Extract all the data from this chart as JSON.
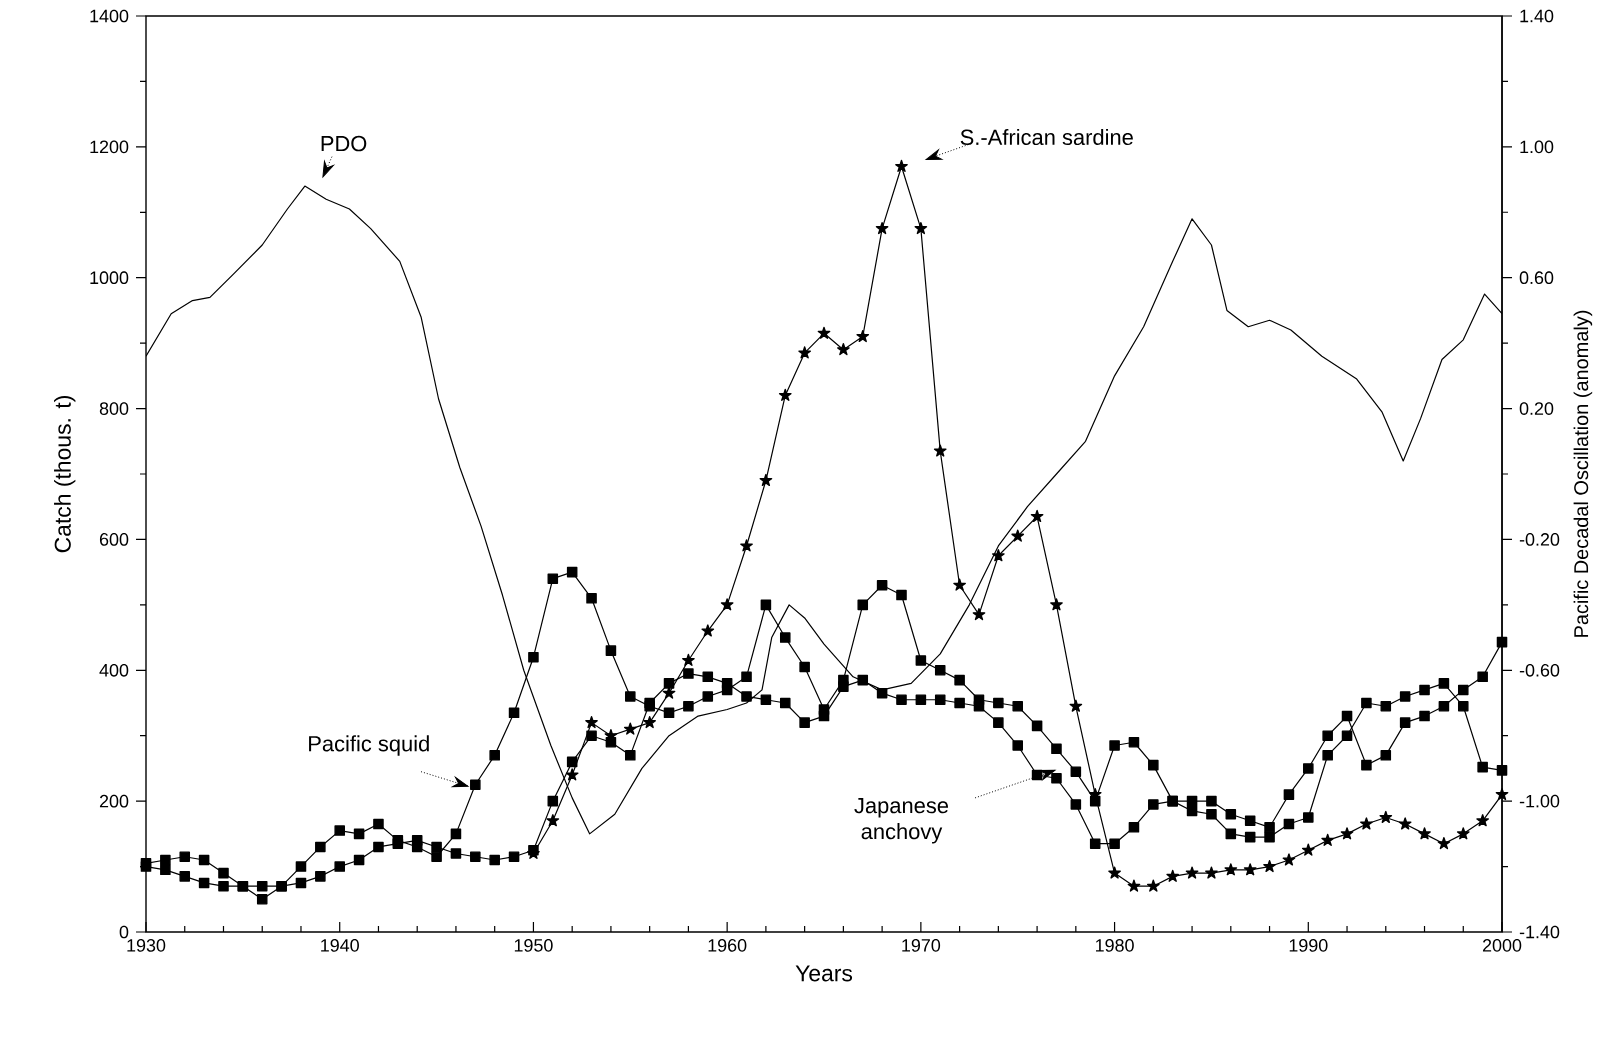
{
  "chart_data": {
    "type": "line",
    "xlabel": "Years",
    "ylabel": "Catch (thous. t)",
    "y2label": "Pacific Decadal Oscillation (anomaly)",
    "xlim": [
      1930,
      2000
    ],
    "ylim": [
      0,
      1400
    ],
    "y2lim": [
      -1.4,
      1.4
    ],
    "xticks": [
      1930,
      {
        "value": 1932,
        "label": null
      },
      {
        "value": 1934,
        "label": null
      },
      {
        "value": 1936,
        "label": null
      },
      {
        "value": 1938,
        "label": null
      },
      1940,
      {
        "value": 1942,
        "label": null
      },
      {
        "value": 1944,
        "label": null
      },
      {
        "value": 1946,
        "label": null
      },
      {
        "value": 1948,
        "label": null
      },
      1950,
      {
        "value": 1952,
        "label": null
      },
      {
        "value": 1954,
        "label": null
      },
      {
        "value": 1956,
        "label": null
      },
      {
        "value": 1958,
        "label": null
      },
      1960,
      {
        "value": 1962,
        "label": null
      },
      {
        "value": 1964,
        "label": null
      },
      {
        "value": 1966,
        "label": null
      },
      {
        "value": 1968,
        "label": null
      },
      1970,
      {
        "value": 1972,
        "label": null
      },
      {
        "value": 1974,
        "label": null
      },
      {
        "value": 1976,
        "label": null
      },
      {
        "value": 1978,
        "label": null
      },
      1980,
      {
        "value": 1982,
        "label": null
      },
      {
        "value": 1984,
        "label": null
      },
      {
        "value": 1986,
        "label": null
      },
      {
        "value": 1988,
        "label": null
      },
      1990,
      {
        "value": 1992,
        "label": null
      },
      {
        "value": 1994,
        "label": null
      },
      {
        "value": 1996,
        "label": null
      },
      {
        "value": 1998,
        "label": null
      },
      2000
    ],
    "yticks": [
      0,
      {
        "value": 100,
        "label": null
      },
      200,
      {
        "value": 300,
        "label": null
      },
      400,
      {
        "value": 500,
        "label": null
      },
      600,
      {
        "value": 700,
        "label": null
      },
      800,
      {
        "value": 900,
        "label": null
      },
      1000,
      {
        "value": 1100,
        "label": null
      },
      1200,
      {
        "value": 1300,
        "label": null
      },
      1400
    ],
    "y2ticks": [
      {
        "value": 1.4,
        "label": "1.40"
      },
      {
        "value": 1.2,
        "label": null
      },
      {
        "value": 1.0,
        "label": "1.00"
      },
      {
        "value": 0.8,
        "label": null
      },
      {
        "value": 0.6,
        "label": "0.60"
      },
      {
        "value": 0.4,
        "label": null
      },
      {
        "value": 0.2,
        "label": "0.20"
      },
      {
        "value": 0.0,
        "label": null
      },
      {
        "value": -0.2,
        "label": "-0.20"
      },
      {
        "value": -0.4,
        "label": null
      },
      {
        "value": -0.6,
        "label": "-0.60"
      },
      {
        "value": -0.8,
        "label": null
      },
      {
        "value": -1.0,
        "label": "-1.00"
      },
      {
        "value": -1.2,
        "label": null
      },
      {
        "value": -1.4,
        "label": "-1.40"
      }
    ],
    "x": [
      1930,
      1931,
      1932,
      1933,
      1934,
      1935,
      1936,
      1937,
      1938,
      1939,
      1940,
      1941,
      1942,
      1943,
      1944,
      1945,
      1946,
      1947,
      1948,
      1949,
      1950,
      1951,
      1952,
      1953,
      1954,
      1955,
      1956,
      1957,
      1958,
      1959,
      1960,
      1961,
      1962,
      1963,
      1964,
      1965,
      1966,
      1967,
      1968,
      1969,
      1970,
      1971,
      1972,
      1973,
      1974,
      1975,
      1976,
      1977,
      1978,
      1979,
      1980,
      1981,
      1982,
      1983,
      1984,
      1985,
      1986,
      1987,
      1988,
      1989,
      1990,
      1991,
      1992,
      1993,
      1994,
      1995,
      1996,
      1997,
      1998,
      1999,
      2000
    ],
    "series": [
      {
        "name": "PDO",
        "color": "#000000",
        "axis": "y2",
        "marker": "none",
        "x": [
          1930,
          1931.3,
          1932.4,
          1933.3,
          1934.5,
          1936,
          1937.3,
          1938.2,
          1939.3,
          1940.5,
          1941.6,
          1943.1,
          1944.2,
          1945.1,
          1946.2,
          1947.3,
          1948.4,
          1949.5,
          1950.9,
          1952,
          1952.9,
          1954.2,
          1955.6,
          1957,
          1958.5,
          1960,
          1961,
          1961.8,
          1962.3,
          1963.2,
          1964,
          1965,
          1966.5,
          1968,
          1969.5,
          1971,
          1972.5,
          1974,
          1975.5,
          1977,
          1978.5,
          1980,
          1981.5,
          1983,
          1984,
          1985,
          1985.8,
          1986.9,
          1988,
          1989.1,
          1990.7,
          1992.5,
          1993.8,
          1994.9,
          1995.8,
          1996.9,
          1998,
          1999.1,
          2000
        ],
        "values": [
          0.36,
          0.49,
          0.53,
          0.54,
          0.61,
          0.7,
          0.81,
          0.88,
          0.84,
          0.81,
          0.75,
          0.65,
          0.48,
          0.23,
          0.02,
          -0.16,
          -0.37,
          -0.6,
          -0.83,
          -0.99,
          -1.1,
          -1.04,
          -0.9,
          -0.8,
          -0.74,
          -0.72,
          -0.7,
          -0.66,
          -0.5,
          -0.4,
          -0.44,
          -0.52,
          -0.62,
          -0.66,
          -0.64,
          -0.55,
          -0.4,
          -0.22,
          -0.1,
          0.0,
          0.1,
          0.3,
          0.45,
          0.65,
          0.78,
          0.7,
          0.5,
          0.45,
          0.47,
          0.44,
          0.36,
          0.29,
          0.19,
          0.04,
          0.17,
          0.35,
          0.41,
          0.55,
          0.49
        ]
      },
      {
        "name": "Pacific squid",
        "color": "#000000",
        "axis": "y",
        "marker": "square",
        "values": [
          105,
          110,
          115,
          110,
          90,
          70,
          50,
          70,
          100,
          130,
          155,
          150,
          165,
          140,
          130,
          115,
          150,
          225,
          270,
          335,
          420,
          540,
          550,
          510,
          430,
          360,
          345,
          335,
          345,
          360,
          370,
          390,
          500,
          450,
          405,
          340,
          385,
          500,
          530,
          515,
          415,
          400,
          385,
          355,
          350,
          345,
          315,
          280,
          245,
          200,
          285,
          290,
          255,
          200,
          185,
          180,
          150,
          145,
          145,
          165,
          175,
          270,
          300,
          350,
          345,
          360,
          370,
          380,
          345,
          252,
          247
        ]
      },
      {
        "name": "Japanese anchovy",
        "color": "#000000",
        "axis": "y",
        "marker": "square",
        "values": [
          100,
          95,
          85,
          75,
          70,
          70,
          70,
          70,
          75,
          85,
          100,
          110,
          130,
          135,
          140,
          130,
          120,
          115,
          110,
          115,
          125,
          200,
          260,
          300,
          290,
          270,
          350,
          380,
          395,
          390,
          380,
          360,
          355,
          350,
          320,
          330,
          375,
          385,
          365,
          355,
          355,
          355,
          350,
          345,
          320,
          285,
          240,
          235,
          195,
          135,
          135,
          160,
          195,
          200,
          200,
          200,
          180,
          170,
          160,
          210,
          250,
          300,
          330,
          255,
          270,
          320,
          330,
          345,
          370,
          390,
          443
        ]
      },
      {
        "name": "S.-African sardine",
        "color": "#000000",
        "axis": "y",
        "marker": "star",
        "x": [
          1950,
          1951,
          1952,
          1953,
          1954,
          1955,
          1956,
          1957,
          1958,
          1959,
          1960,
          1961,
          1962,
          1963,
          1964,
          1965,
          1966,
          1967,
          1968,
          1969,
          1970,
          1971,
          1972,
          1973,
          1974,
          1975,
          1976,
          1977,
          1978,
          1979,
          1980,
          1981,
          1982,
          1983,
          1984,
          1985,
          1986,
          1987,
          1988,
          1989,
          1990,
          1991,
          1992,
          1993,
          1994,
          1995,
          1996,
          1997,
          1998,
          1999,
          2000
        ],
        "values": [
          120,
          170,
          240,
          320,
          300,
          310,
          320,
          365,
          415,
          460,
          500,
          590,
          690,
          820,
          885,
          915,
          890,
          910,
          1075,
          1170,
          1075,
          735,
          530,
          485,
          575,
          605,
          635,
          500,
          345,
          210,
          90,
          70,
          70,
          85,
          90,
          90,
          95,
          95,
          100,
          110,
          125,
          140,
          150,
          165,
          175,
          165,
          150,
          135,
          150,
          170,
          210
        ]
      }
    ]
  }
}
